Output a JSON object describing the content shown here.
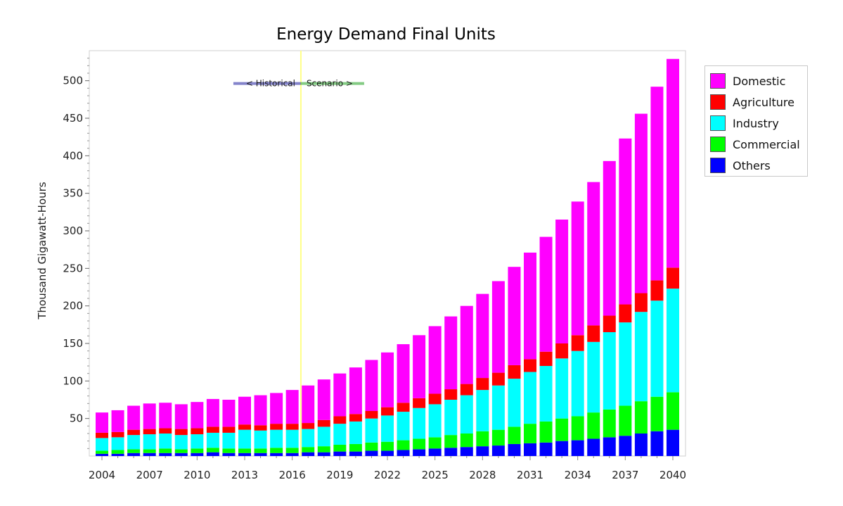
{
  "chart_data": {
    "type": "bar",
    "stacked": true,
    "title": "Energy Demand Final Units",
    "ylabel": "Thousand Gigawatt-Hours",
    "xlabel": "",
    "ylim": [
      0,
      540
    ],
    "y_ticks": [
      50,
      100,
      150,
      200,
      250,
      300,
      350,
      400,
      450,
      500
    ],
    "x_tick_labels": [
      "2004",
      "2007",
      "2010",
      "2013",
      "2016",
      "2019",
      "2022",
      "2025",
      "2028",
      "2031",
      "2034",
      "2037",
      "2040"
    ],
    "categories": [
      "2004",
      "2005",
      "2006",
      "2007",
      "2008",
      "2009",
      "2010",
      "2011",
      "2012",
      "2013",
      "2014",
      "2015",
      "2016",
      "2017",
      "2018",
      "2019",
      "2020",
      "2021",
      "2022",
      "2023",
      "2024",
      "2025",
      "2026",
      "2027",
      "2028",
      "2029",
      "2030",
      "2031",
      "2032",
      "2033",
      "2034",
      "2035",
      "2036",
      "2037",
      "2038",
      "2039",
      "2040"
    ],
    "divider": {
      "year": 2017,
      "left_text": "< Historical",
      "right_text": "Scenario >",
      "color": "#ffff88"
    },
    "legend_position": "top-right",
    "grid": false,
    "series": [
      {
        "name": "Others",
        "color": "#0000ff",
        "values": [
          3,
          3,
          4,
          4,
          4,
          4,
          4,
          5,
          4,
          4,
          4,
          4,
          4,
          5,
          5,
          6,
          6,
          7,
          7,
          8,
          9,
          10,
          11,
          12,
          13,
          14,
          16,
          17,
          18,
          20,
          21,
          23,
          25,
          27,
          30,
          33,
          35
        ]
      },
      {
        "name": "Commercial",
        "color": "#00ff00",
        "values": [
          4,
          5,
          5,
          5,
          6,
          5,
          6,
          6,
          6,
          6,
          6,
          7,
          7,
          7,
          8,
          9,
          10,
          11,
          12,
          13,
          14,
          15,
          17,
          18,
          20,
          21,
          23,
          26,
          28,
          30,
          32,
          35,
          37,
          40,
          43,
          46,
          50
        ]
      },
      {
        "name": "Industry",
        "color": "#00ffff",
        "values": [
          17,
          17,
          19,
          20,
          20,
          19,
          19,
          20,
          21,
          25,
          24,
          24,
          24,
          24,
          26,
          28,
          30,
          32,
          35,
          38,
          41,
          44,
          47,
          51,
          55,
          59,
          64,
          69,
          74,
          80,
          87,
          94,
          103,
          111,
          119,
          128,
          138
        ]
      },
      {
        "name": "Agriculture",
        "color": "#ff0000",
        "values": [
          7,
          7,
          7,
          7,
          7,
          8,
          8,
          8,
          8,
          7,
          7,
          8,
          8,
          8,
          9,
          10,
          10,
          10,
          11,
          12,
          13,
          14,
          14,
          15,
          16,
          17,
          18,
          17,
          19,
          20,
          21,
          22,
          22,
          24,
          25,
          27,
          28
        ]
      },
      {
        "name": "Domestic",
        "color": "#ff00ff",
        "values": [
          27,
          29,
          32,
          34,
          34,
          33,
          35,
          37,
          36,
          37,
          40,
          41,
          45,
          50,
          54,
          57,
          62,
          68,
          73,
          78,
          84,
          90,
          97,
          104,
          112,
          122,
          131,
          142,
          153,
          165,
          178,
          191,
          206,
          221,
          239,
          258,
          278
        ]
      }
    ]
  },
  "legend": {
    "items": [
      {
        "label": "Domestic",
        "color": "#ff00ff"
      },
      {
        "label": "Agriculture",
        "color": "#ff0000"
      },
      {
        "label": "Industry",
        "color": "#00ffff"
      },
      {
        "label": "Commercial",
        "color": "#00ff00"
      },
      {
        "label": "Others",
        "color": "#0000ff"
      }
    ]
  }
}
